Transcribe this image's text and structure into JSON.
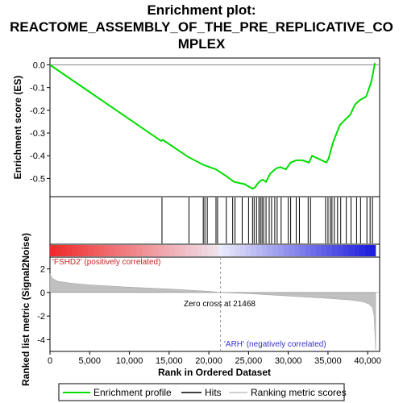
{
  "chart_data": {
    "type": "line",
    "title_lines": [
      "Enrichment plot:",
      "REACTOME_ASSEMBLY_OF_THE_PRE_REPLICATIVE_CO",
      "MPLEX"
    ],
    "es_panel": {
      "ylabel": "Enrichment score (ES)",
      "ylim": [
        -0.58,
        0.03
      ],
      "yticks": [
        0.0,
        -0.1,
        -0.2,
        -0.3,
        -0.4,
        -0.5
      ],
      "ytick_labels": [
        "0.0",
        "-0.1",
        "-0.2",
        "-0.3",
        "-0.4",
        "-0.5"
      ],
      "grid": false,
      "series_color": "#00dd00",
      "series": [
        {
          "name": "Enrichment profile",
          "x": [
            0,
            14000,
            14200,
            17400,
            19300,
            19700,
            20900,
            22200,
            23200,
            24500,
            25500,
            25800,
            26200,
            26500,
            26800,
            27200,
            27700,
            28000,
            28500,
            29000,
            29700,
            30300,
            31000,
            31800,
            32600,
            33000,
            34800,
            35100,
            35400,
            35700,
            36100,
            36500,
            37200,
            37800,
            38400,
            39000,
            39800,
            40100,
            40400,
            40600,
            40900
          ],
          "y": [
            0.0,
            -0.335,
            -0.33,
            -0.405,
            -0.44,
            -0.445,
            -0.46,
            -0.49,
            -0.515,
            -0.525,
            -0.545,
            -0.54,
            -0.52,
            -0.51,
            -0.505,
            -0.515,
            -0.48,
            -0.47,
            -0.455,
            -0.45,
            -0.46,
            -0.43,
            -0.42,
            -0.42,
            -0.43,
            -0.4,
            -0.43,
            -0.41,
            -0.37,
            -0.335,
            -0.3,
            -0.265,
            -0.24,
            -0.22,
            -0.175,
            -0.155,
            -0.14,
            -0.11,
            -0.08,
            -0.05,
            0.008
          ]
        }
      ]
    },
    "hits": [
      14100,
      17500,
      19300,
      19500,
      19800,
      20900,
      21100,
      22200,
      23000,
      23300,
      24200,
      25000,
      25500,
      25700,
      26000,
      26300,
      26500,
      26700,
      26900,
      27200,
      27600,
      27900,
      28300,
      28600,
      29100,
      30000,
      30300,
      31000,
      31400,
      32500,
      32800,
      34700,
      35000,
      35300,
      35500,
      35800,
      36200,
      36600,
      37300,
      37900,
      38600,
      39100,
      39900,
      40300,
      40600
    ],
    "heatmap_labels": {
      "positive": "'FSHD2' (positively correlated)",
      "negative": "'ARH' (negatively correlated)"
    },
    "metric_panel": {
      "ylabel": "Ranked list metric (Signal2Noise)",
      "ylim": [
        -5,
        3
      ],
      "yticks": [
        2,
        0,
        -2,
        -4
      ],
      "ytick_labels": [
        "2",
        "0",
        "-2",
        "-4"
      ],
      "zero_cross_label": "Zero cross at 21468",
      "zero_cross": 21468,
      "curve_x": [
        0,
        300,
        1000,
        2500,
        5000,
        10000,
        15000,
        20000,
        21468,
        25000,
        30000,
        35000,
        38000,
        39500,
        40200,
        40600,
        40800,
        41000
      ],
      "curve_y": [
        1.6,
        1.2,
        0.95,
        0.8,
        0.65,
        0.45,
        0.3,
        0.1,
        0.0,
        -0.1,
        -0.3,
        -0.5,
        -0.65,
        -0.8,
        -1.0,
        -1.3,
        -2.0,
        -4.9
      ]
    },
    "xlabel": "Rank in Ordered Dataset",
    "xlim": [
      0,
      41500
    ],
    "xticks": [
      0,
      5000,
      10000,
      15000,
      20000,
      25000,
      30000,
      35000,
      40000
    ],
    "xtick_labels": [
      "0",
      "5,000",
      "10,000",
      "15,000",
      "20,000",
      "25,000",
      "30,000",
      "35,000",
      "40,000"
    ],
    "legend": {
      "position": "bottom",
      "entries": [
        {
          "label": "Enrichment profile",
          "color": "#00dd00"
        },
        {
          "label": "Hits",
          "color": "#000000"
        },
        {
          "label": "Ranking metric scores",
          "color": "#c0c0c0"
        }
      ]
    }
  }
}
